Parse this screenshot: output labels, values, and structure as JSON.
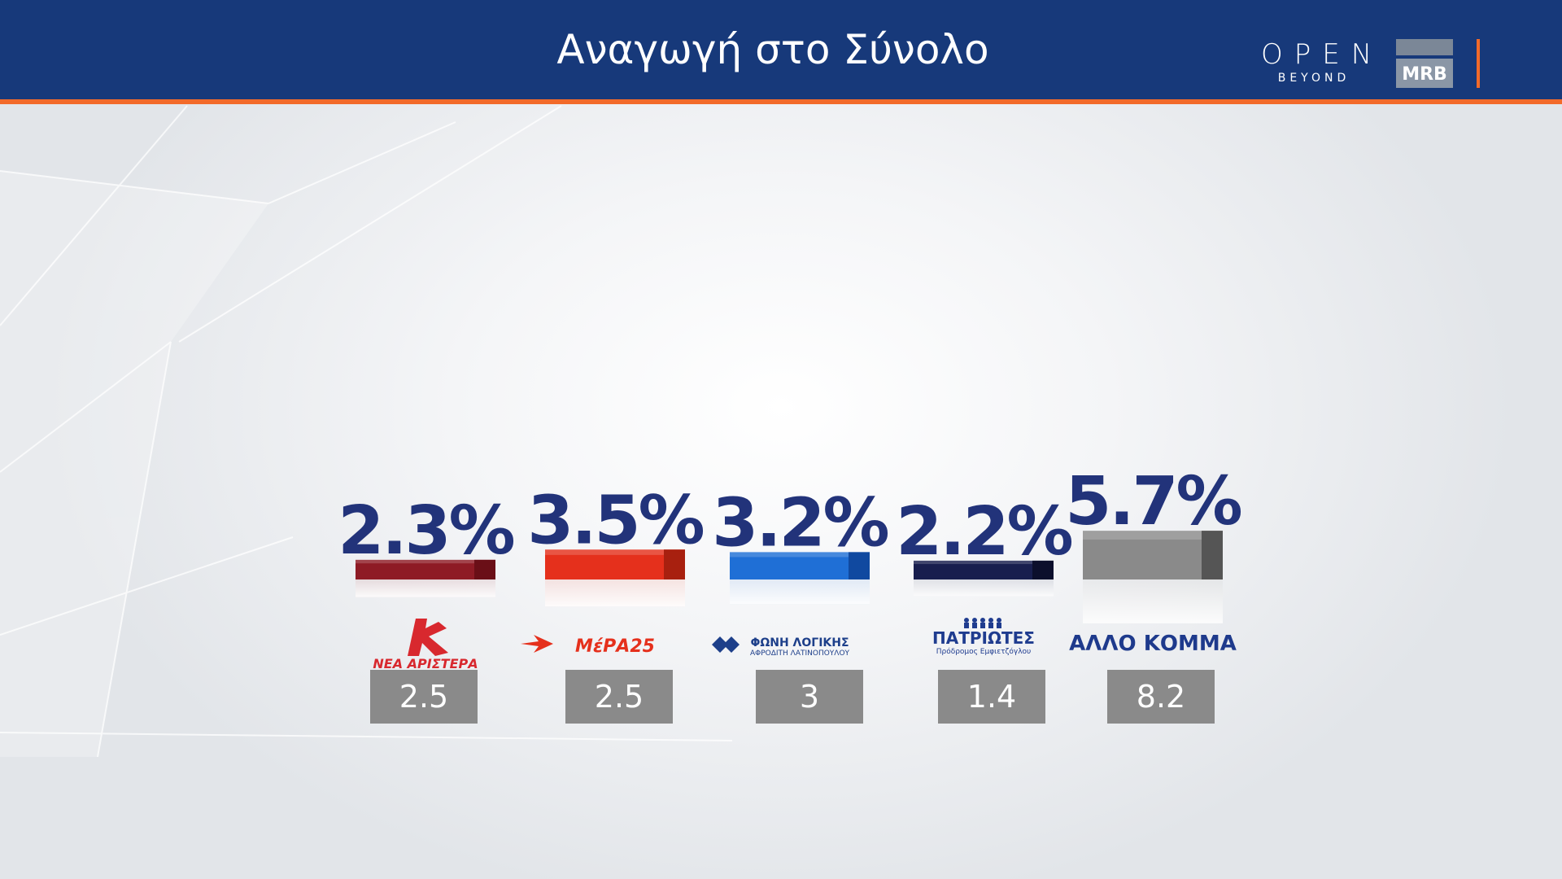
{
  "header": {
    "title": "Αναγωγή στο Σύνολο",
    "open_logo": "OPEN",
    "open_logo_sub": "BEYOND",
    "mrb_logo": "MRB"
  },
  "colors": {
    "header_bg": "#17397a",
    "header_stripe": "#f26a2a",
    "percent_text": "#22337a",
    "value_box": "#8a8a8a"
  },
  "chart_data": {
    "type": "bar",
    "categories": [
      "ΝΕΑ ΑΡΙΣΤΕΡΑ",
      "ΜέΡΑ25",
      "ΦΩΝΗ ΛΟΓΙΚΗΣ",
      "ΠΑΤΡΙΩΤΕΣ",
      "ΑΛΛΟ ΚΟΜΜΑ"
    ],
    "values": [
      2.3,
      3.5,
      3.2,
      2.2,
      5.7
    ],
    "value_labels": [
      "2.3%",
      "3.5%",
      "3.2%",
      "2.2%",
      "5.7%"
    ],
    "secondary_values": [
      "2.5",
      "2.5",
      "3",
      "1.4",
      "8.2"
    ],
    "bar_colors": [
      "#8e1b25",
      "#e5301c",
      "#1f6fd6",
      "#181e4e",
      "#8a8a8a"
    ],
    "bar_shade_colors": [
      "#6a0f17",
      "#a8200f",
      "#1049a0",
      "#0c0f2c",
      "#555555"
    ],
    "party_subtitles": [
      "",
      "",
      "ΑΦΡΟΔΙΤΗ ΛΑΤΙΝΟΠΟΥΛΟΥ",
      "Πρόδρομος Εμφιετζόγλου",
      ""
    ],
    "label_colors": [
      "#d8282e",
      "#e5301c",
      "#1d3f8a",
      "#1f3c8f",
      "#1e3a8c"
    ],
    "title": "Αναγωγή στο Σύνολο",
    "ylim": [
      0,
      6
    ]
  }
}
